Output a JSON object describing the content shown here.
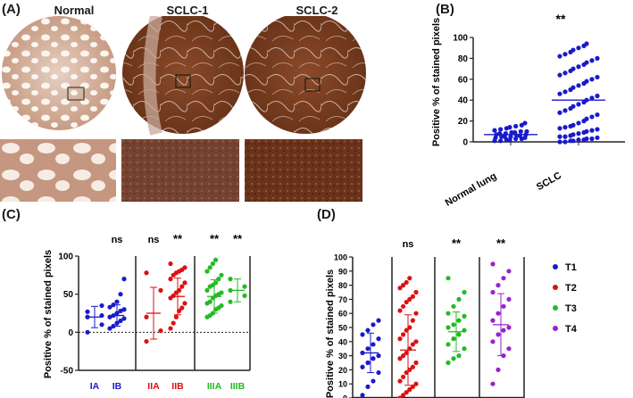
{
  "panels": {
    "a": "(A)",
    "b": "(B)",
    "c": "(C)",
    "d": "(D)"
  },
  "images": {
    "labels": [
      "Normal",
      "SCLC-1",
      "SCLC-2"
    ]
  },
  "colors": {
    "tissue_normal": "#d8b8a6",
    "tissue_tumor": "#7a3f22",
    "background_stain": "#f1e6dc",
    "blue": "#1a1acc",
    "red": "#dd1111",
    "green": "#22bb22",
    "purple": "#9922cc"
  },
  "chart_data": [
    {
      "id": "B",
      "type": "scatter",
      "ylabel": "Positive % of stained pixels",
      "ylim": [
        0,
        100
      ],
      "yticks": [
        0,
        20,
        40,
        60,
        80,
        100
      ],
      "categories": [
        "Normal lung",
        "SCLC"
      ],
      "annotations": [
        "",
        "**"
      ],
      "mean_lines": [
        7,
        40
      ],
      "series": [
        {
          "category": "Normal lung",
          "values": [
            1,
            1,
            2,
            2,
            3,
            3,
            4,
            4,
            5,
            5,
            5,
            6,
            6,
            7,
            7,
            8,
            8,
            9,
            9,
            10,
            10,
            11,
            12,
            13,
            14,
            15,
            16,
            18
          ]
        },
        {
          "category": "SCLC",
          "values": [
            0,
            0,
            1,
            1,
            2,
            2,
            3,
            3,
            4,
            5,
            5,
            6,
            7,
            8,
            9,
            10,
            11,
            12,
            13,
            14,
            15,
            16,
            18,
            20,
            22,
            24,
            26,
            28,
            30,
            32,
            34,
            36,
            38,
            40,
            42,
            44,
            46,
            48,
            50,
            52,
            54,
            56,
            58,
            60,
            62,
            64,
            66,
            68,
            70,
            72,
            74,
            76,
            78,
            80,
            82,
            84,
            86,
            88,
            90,
            92,
            94
          ]
        }
      ]
    },
    {
      "id": "C",
      "type": "scatter",
      "ylabel": "Positive % of stained pixels",
      "ylim": [
        -50,
        100
      ],
      "yticks": [
        -50,
        0,
        50,
        100
      ],
      "reference_line": 0,
      "categories": [
        "IA",
        "IB",
        "IIA",
        "IIB",
        "IIIA",
        "IIIB"
      ],
      "category_colors": [
        "blue",
        "blue",
        "red",
        "red",
        "green",
        "green"
      ],
      "annotations": [
        "",
        "ns",
        "ns",
        "**",
        "**",
        "**"
      ],
      "group_dividers_after": [
        1,
        3
      ],
      "means": [
        20,
        22,
        25,
        47,
        47,
        55
      ],
      "sd": [
        14,
        14,
        34,
        24,
        22,
        15
      ],
      "series": [
        {
          "category": "IA",
          "values": [
            0,
            10,
            20,
            22,
            27,
            35
          ]
        },
        {
          "category": "IB",
          "values": [
            5,
            8,
            12,
            15,
            18,
            20,
            22,
            25,
            28,
            30,
            33,
            36,
            40,
            50,
            70
          ]
        },
        {
          "category": "IIA",
          "values": [
            -12,
            2,
            20,
            55,
            78
          ]
        },
        {
          "category": "IIB",
          "values": [
            5,
            12,
            20,
            28,
            32,
            38,
            45,
            48,
            52,
            55,
            60,
            65,
            70,
            75,
            78,
            80,
            82,
            85,
            90
          ]
        },
        {
          "category": "IIIA",
          "values": [
            20,
            22,
            25,
            30,
            32,
            35,
            38,
            40,
            45,
            48,
            50,
            52,
            55,
            60,
            62,
            65,
            70,
            75,
            80,
            85,
            90,
            95
          ]
        },
        {
          "category": "IIIB",
          "values": [
            40,
            48,
            55,
            60,
            70
          ]
        }
      ]
    },
    {
      "id": "D",
      "type": "scatter",
      "ylabel": "Positive % of stained pixels",
      "ylim": [
        0,
        100
      ],
      "yticks": [
        0,
        10,
        20,
        30,
        40,
        50,
        60,
        70,
        80,
        90,
        100
      ],
      "categories": [
        "T1",
        "T2",
        "T3",
        "T4"
      ],
      "category_colors": [
        "blue",
        "red",
        "green",
        "purple"
      ],
      "annotations": [
        "",
        "ns",
        "**",
        "**"
      ],
      "means": [
        32,
        34,
        47,
        52
      ],
      "sd": [
        14,
        25,
        14,
        22
      ],
      "legend": [
        "T1",
        "T2",
        "T3",
        "T4"
      ],
      "series": [
        {
          "category": "T1",
          "values": [
            2,
            8,
            12,
            18,
            22,
            25,
            28,
            30,
            32,
            35,
            38,
            42,
            45,
            48,
            52,
            55
          ]
        },
        {
          "category": "T2",
          "values": [
            0,
            2,
            4,
            6,
            8,
            10,
            12,
            15,
            18,
            20,
            22,
            25,
            28,
            30,
            32,
            35,
            38,
            40,
            42,
            45,
            48,
            50,
            55,
            60,
            62,
            65,
            68,
            70,
            72,
            75,
            78,
            80,
            82,
            85
          ]
        },
        {
          "category": "T3",
          "values": [
            25,
            28,
            30,
            35,
            38,
            42,
            45,
            48,
            50,
            52,
            55,
            58,
            60,
            65,
            70,
            75,
            85
          ]
        },
        {
          "category": "T4",
          "values": [
            10,
            20,
            30,
            35,
            40,
            45,
            48,
            50,
            55,
            60,
            65,
            70,
            75,
            80,
            85,
            90,
            95
          ]
        }
      ]
    }
  ]
}
